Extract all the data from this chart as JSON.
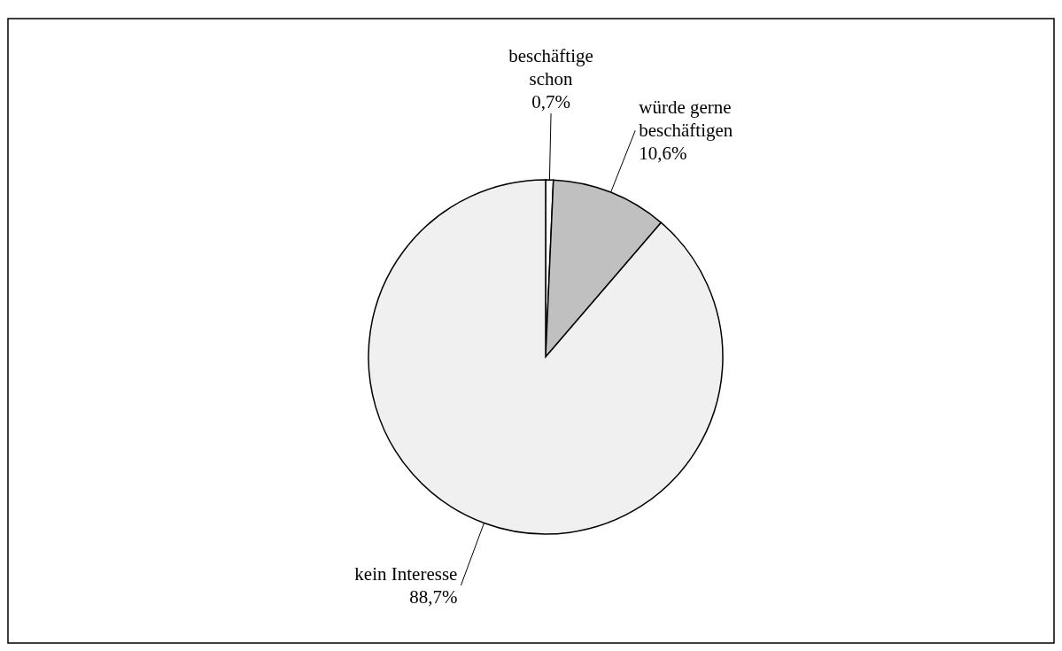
{
  "chart_data": {
    "type": "pie",
    "categories": [
      "beschäftige schon",
      "würde gerne beschäftigen",
      "kein Interesse"
    ],
    "values": [
      0.7,
      10.6,
      88.7
    ],
    "value_labels": [
      "0,7%",
      "10,6%",
      "88,7%"
    ],
    "colors": [
      "#ffffff",
      "#c0c0c0",
      "#f0f0f0"
    ]
  }
}
